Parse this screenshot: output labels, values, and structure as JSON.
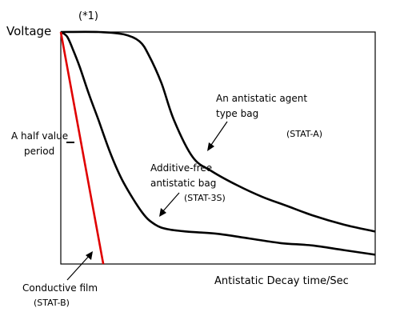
{
  "chart_data": {
    "type": "line",
    "ylabel": "Voltage",
    "xlabel": "Antistatic Decay time/Sec",
    "marker_note": "(*1)",
    "half_value_label": [
      "A half value",
      "period"
    ],
    "half_value_level": 0.5,
    "xlim": [
      0,
      100
    ],
    "ylim": [
      0,
      1
    ],
    "grid": false,
    "series": [
      {
        "id": "stat-a",
        "color": "#000000",
        "labels": [
          "An antistatic agent",
          "type bag",
          "(STAT-A)"
        ],
        "x": [
          0,
          12,
          20,
          25,
          28,
          32,
          36,
          42,
          48,
          56,
          64,
          72,
          80,
          90,
          100
        ],
        "y": [
          1.0,
          1.0,
          0.99,
          0.96,
          0.9,
          0.78,
          0.62,
          0.46,
          0.4,
          0.34,
          0.29,
          0.25,
          0.21,
          0.17,
          0.14
        ]
      },
      {
        "id": "stat-3s",
        "color": "#000000",
        "labels": [
          "Additive-free",
          "antistatic bag",
          "(STAT-3S)"
        ],
        "x": [
          0,
          2,
          4,
          6,
          9,
          12,
          16,
          20,
          26,
          30,
          34,
          40,
          50,
          60,
          70,
          80,
          90,
          100
        ],
        "y": [
          1.0,
          0.98,
          0.92,
          0.85,
          0.73,
          0.62,
          0.47,
          0.35,
          0.22,
          0.17,
          0.15,
          0.14,
          0.13,
          0.11,
          0.09,
          0.08,
          0.06,
          0.04
        ]
      },
      {
        "id": "stat-b",
        "color": "#e00000",
        "labels": [
          "Conductive film",
          "(STAT-B)"
        ],
        "x": [
          0,
          13.5
        ],
        "y": [
          1.0,
          0.0
        ]
      }
    ]
  }
}
